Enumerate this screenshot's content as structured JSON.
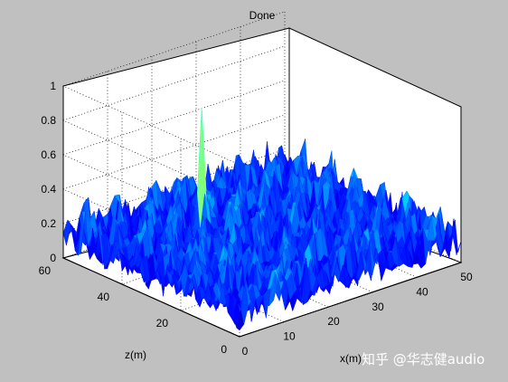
{
  "window": {
    "background_color": "#c0c0c0"
  },
  "chart_data": {
    "type": "surface",
    "title": "Done",
    "xlabel": "x(m)",
    "ylabel": "z(m)",
    "zlabel": "",
    "xlim": [
      0,
      50
    ],
    "ylim": [
      0,
      60
    ],
    "zlim": [
      0,
      1
    ],
    "x_ticks": [
      0,
      10,
      20,
      30,
      40,
      50
    ],
    "y_ticks": [
      0,
      20,
      40,
      60
    ],
    "z_ticks": [
      0,
      0.2,
      0.4,
      0.6,
      0.8,
      1
    ],
    "z_tick_labels": [
      "0",
      "0.2",
      "0.4",
      "0.6",
      "0.8",
      "1"
    ],
    "grid": true,
    "colormap": "jet",
    "peak": {
      "x": 18,
      "y": 40,
      "z": 0.87
    },
    "background_level_range": [
      0.05,
      0.35
    ]
  },
  "watermark": {
    "text": "知乎 @华志健audio"
  }
}
